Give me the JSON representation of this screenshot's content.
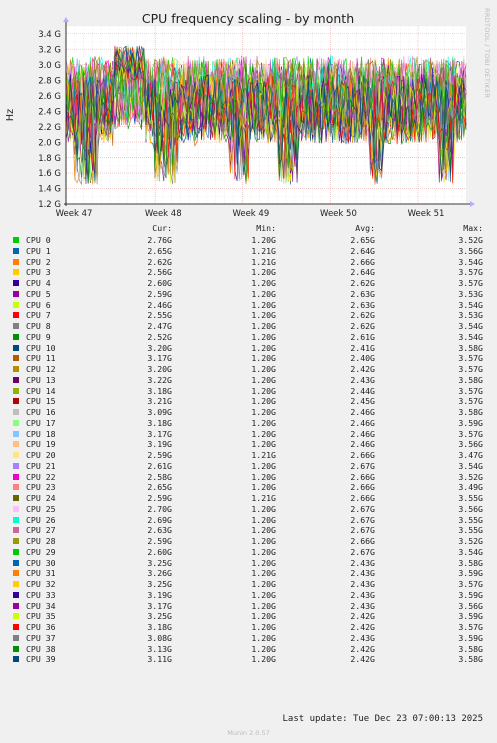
{
  "chart_data": {
    "type": "line",
    "title": "CPU frequency scaling - by month",
    "ylabel": "Hz",
    "ylim": [
      1.2,
      3.5
    ],
    "y_ticks": [
      "1.2 G",
      "1.4 G",
      "1.6 G",
      "1.8 G",
      "2.0 G",
      "2.2 G",
      "2.4 G",
      "2.6 G",
      "2.8 G",
      "3.0 G",
      "3.2 G",
      "3.4 G"
    ],
    "y_tick_values": [
      1.2,
      1.4,
      1.6,
      1.8,
      2.0,
      2.2,
      2.4,
      2.6,
      2.8,
      3.0,
      3.2,
      3.4
    ],
    "x_ticks": [
      "Week 47",
      "Week 48",
      "Week 49",
      "Week 50",
      "Week 51"
    ],
    "x_tick_positions": [
      0,
      0.2535,
      0.5024,
      0.7513,
      1.0
    ],
    "x_range_weeks": [
      0,
      4.8
    ],
    "grid": true,
    "column_headers": [
      "Cur:",
      "Min:",
      "Avg:",
      "Max:"
    ],
    "series": [
      {
        "name": "CPU 0",
        "color": "#00cc00",
        "cur": "2.76G",
        "min": "1.20G",
        "avg": "2.65G",
        "max": "3.52G"
      },
      {
        "name": "CPU 1",
        "color": "#0066b3",
        "cur": "2.65G",
        "min": "1.21G",
        "avg": "2.64G",
        "max": "3.56G"
      },
      {
        "name": "CPU 2",
        "color": "#ff8000",
        "cur": "2.62G",
        "min": "1.21G",
        "avg": "2.66G",
        "max": "3.54G"
      },
      {
        "name": "CPU 3",
        "color": "#ffcc00",
        "cur": "2.56G",
        "min": "1.20G",
        "avg": "2.64G",
        "max": "3.57G"
      },
      {
        "name": "CPU 4",
        "color": "#330099",
        "cur": "2.60G",
        "min": "1.20G",
        "avg": "2.62G",
        "max": "3.57G"
      },
      {
        "name": "CPU 5",
        "color": "#990099",
        "cur": "2.59G",
        "min": "1.20G",
        "avg": "2.63G",
        "max": "3.53G"
      },
      {
        "name": "CPU 6",
        "color": "#ccff00",
        "cur": "2.46G",
        "min": "1.20G",
        "avg": "2.63G",
        "max": "3.54G"
      },
      {
        "name": "CPU 7",
        "color": "#ff0000",
        "cur": "2.55G",
        "min": "1.20G",
        "avg": "2.62G",
        "max": "3.53G"
      },
      {
        "name": "CPU 8",
        "color": "#808080",
        "cur": "2.47G",
        "min": "1.20G",
        "avg": "2.62G",
        "max": "3.54G"
      },
      {
        "name": "CPU 9",
        "color": "#008f00",
        "cur": "2.52G",
        "min": "1.20G",
        "avg": "2.61G",
        "max": "3.54G"
      },
      {
        "name": "CPU 10",
        "color": "#00487d",
        "cur": "3.20G",
        "min": "1.20G",
        "avg": "2.41G",
        "max": "3.58G"
      },
      {
        "name": "CPU 11",
        "color": "#b35a00",
        "cur": "3.17G",
        "min": "1.20G",
        "avg": "2.40G",
        "max": "3.57G"
      },
      {
        "name": "CPU 12",
        "color": "#b38f00",
        "cur": "3.20G",
        "min": "1.20G",
        "avg": "2.42G",
        "max": "3.57G"
      },
      {
        "name": "CPU 13",
        "color": "#6b006b",
        "cur": "3.22G",
        "min": "1.20G",
        "avg": "2.43G",
        "max": "3.58G"
      },
      {
        "name": "CPU 14",
        "color": "#8fb300",
        "cur": "3.18G",
        "min": "1.20G",
        "avg": "2.44G",
        "max": "3.57G"
      },
      {
        "name": "CPU 15",
        "color": "#b30000",
        "cur": "3.21G",
        "min": "1.20G",
        "avg": "2.45G",
        "max": "3.57G"
      },
      {
        "name": "CPU 16",
        "color": "#bebebe",
        "cur": "3.09G",
        "min": "1.20G",
        "avg": "2.46G",
        "max": "3.58G"
      },
      {
        "name": "CPU 17",
        "color": "#80ff80",
        "cur": "3.18G",
        "min": "1.20G",
        "avg": "2.46G",
        "max": "3.59G"
      },
      {
        "name": "CPU 18",
        "color": "#80c9ff",
        "cur": "3.17G",
        "min": "1.20G",
        "avg": "2.46G",
        "max": "3.57G"
      },
      {
        "name": "CPU 19",
        "color": "#ffc080",
        "cur": "3.19G",
        "min": "1.20G",
        "avg": "2.46G",
        "max": "3.56G"
      },
      {
        "name": "CPU 20",
        "color": "#ffe680",
        "cur": "2.59G",
        "min": "1.21G",
        "avg": "2.66G",
        "max": "3.47G"
      },
      {
        "name": "CPU 21",
        "color": "#aa80ff",
        "cur": "2.61G",
        "min": "1.20G",
        "avg": "2.67G",
        "max": "3.54G"
      },
      {
        "name": "CPU 22",
        "color": "#ee00cc",
        "cur": "2.58G",
        "min": "1.20G",
        "avg": "2.66G",
        "max": "3.52G"
      },
      {
        "name": "CPU 23",
        "color": "#ff8080",
        "cur": "2.65G",
        "min": "1.20G",
        "avg": "2.66G",
        "max": "3.49G"
      },
      {
        "name": "CPU 24",
        "color": "#666600",
        "cur": "2.59G",
        "min": "1.21G",
        "avg": "2.66G",
        "max": "3.55G"
      },
      {
        "name": "CPU 25",
        "color": "#ffbfff",
        "cur": "2.70G",
        "min": "1.20G",
        "avg": "2.67G",
        "max": "3.56G"
      },
      {
        "name": "CPU 26",
        "color": "#00ffcc",
        "cur": "2.69G",
        "min": "1.20G",
        "avg": "2.67G",
        "max": "3.55G"
      },
      {
        "name": "CPU 27",
        "color": "#cc6699",
        "cur": "2.63G",
        "min": "1.20G",
        "avg": "2.67G",
        "max": "3.55G"
      },
      {
        "name": "CPU 28",
        "color": "#999900",
        "cur": "2.59G",
        "min": "1.20G",
        "avg": "2.66G",
        "max": "3.52G"
      },
      {
        "name": "CPU 29",
        "color": "#00cc00",
        "cur": "2.60G",
        "min": "1.20G",
        "avg": "2.67G",
        "max": "3.54G"
      },
      {
        "name": "CPU 30",
        "color": "#0066b3",
        "cur": "3.25G",
        "min": "1.20G",
        "avg": "2.43G",
        "max": "3.58G"
      },
      {
        "name": "CPU 31",
        "color": "#ff8000",
        "cur": "3.26G",
        "min": "1.20G",
        "avg": "2.43G",
        "max": "3.59G"
      },
      {
        "name": "CPU 32",
        "color": "#ffcc00",
        "cur": "3.25G",
        "min": "1.20G",
        "avg": "2.43G",
        "max": "3.57G"
      },
      {
        "name": "CPU 33",
        "color": "#330099",
        "cur": "3.19G",
        "min": "1.20G",
        "avg": "2.43G",
        "max": "3.59G"
      },
      {
        "name": "CPU 34",
        "color": "#990099",
        "cur": "3.17G",
        "min": "1.20G",
        "avg": "2.43G",
        "max": "3.56G"
      },
      {
        "name": "CPU 35",
        "color": "#ccff00",
        "cur": "3.25G",
        "min": "1.20G",
        "avg": "2.42G",
        "max": "3.59G"
      },
      {
        "name": "CPU 36",
        "color": "#ff0000",
        "cur": "3.18G",
        "min": "1.20G",
        "avg": "2.42G",
        "max": "3.57G"
      },
      {
        "name": "CPU 37",
        "color": "#808080",
        "cur": "3.08G",
        "min": "1.20G",
        "avg": "2.43G",
        "max": "3.59G"
      },
      {
        "name": "CPU 38",
        "color": "#008f00",
        "cur": "3.13G",
        "min": "1.20G",
        "avg": "2.42G",
        "max": "3.58G"
      },
      {
        "name": "CPU 39",
        "color": "#00487d",
        "cur": "3.11G",
        "min": "1.20G",
        "avg": "2.42G",
        "max": "3.58G"
      }
    ]
  },
  "footer": {
    "last_update": "Last update: Tue Dec 23 07:00:13 2025",
    "generator": "Munin 2.0.57",
    "side_label": "RRDTOOL / TOBI OETIKER"
  }
}
